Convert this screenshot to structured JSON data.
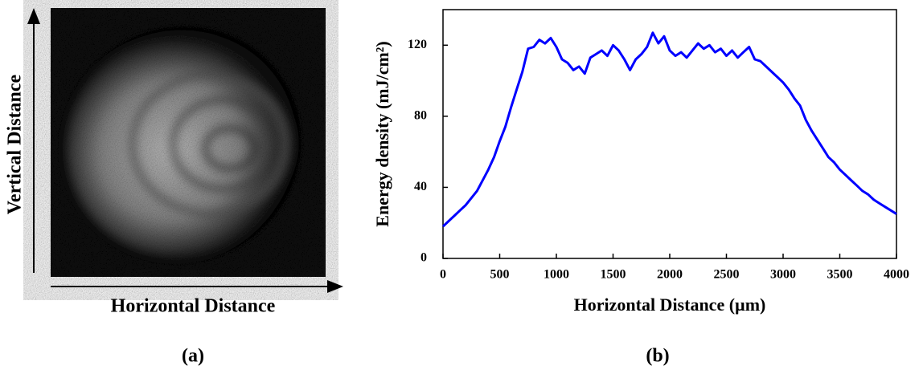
{
  "image_panel": {
    "y_axis_label": "Vertical Distance",
    "x_axis_label": "Horizontal Distance",
    "panel_label": "(a)"
  },
  "chart_data": {
    "type": "line",
    "panel_label": "(b)",
    "xlabel": "Horizontal Distance (µm)",
    "ylabel": "Energy density (mJ/cm²)",
    "x": [
      0,
      50,
      100,
      150,
      200,
      250,
      300,
      350,
      400,
      450,
      500,
      550,
      600,
      650,
      700,
      750,
      800,
      850,
      900,
      950,
      1000,
      1050,
      1100,
      1150,
      1200,
      1250,
      1300,
      1350,
      1400,
      1450,
      1500,
      1550,
      1600,
      1650,
      1700,
      1750,
      1800,
      1850,
      1900,
      1950,
      2000,
      2050,
      2100,
      2150,
      2200,
      2250,
      2300,
      2350,
      2400,
      2450,
      2500,
      2550,
      2600,
      2650,
      2700,
      2750,
      2800,
      2850,
      2900,
      2950,
      3000,
      3050,
      3100,
      3150,
      3200,
      3250,
      3300,
      3350,
      3400,
      3450,
      3500,
      3550,
      3600,
      3650,
      3700,
      3750,
      3800,
      3850,
      3900,
      3950,
      4000
    ],
    "series": [
      {
        "color": "#0000ff",
        "values": [
          18,
          21,
          24,
          27,
          30,
          34,
          38,
          44,
          50,
          57,
          66,
          74,
          85,
          95,
          105,
          118,
          119,
          123,
          121,
          124,
          119,
          112,
          110,
          106,
          108,
          104,
          113,
          115,
          117,
          114,
          120,
          117,
          112,
          106,
          112,
          115,
          119,
          127,
          121,
          125,
          117,
          114,
          116,
          113,
          117,
          121,
          118,
          120,
          116,
          118,
          114,
          117,
          113,
          116,
          119,
          112,
          111,
          108,
          105,
          102,
          99,
          95,
          90,
          86,
          78,
          72,
          67,
          62,
          57,
          54,
          50,
          47,
          44,
          41,
          38,
          36,
          33,
          31,
          29,
          27,
          25
        ]
      }
    ],
    "xlim": [
      0,
      4000
    ],
    "ylim": [
      0,
      140
    ],
    "xticks": [
      0,
      500,
      1000,
      1500,
      2000,
      2500,
      3000,
      3500,
      4000
    ],
    "yticks": [
      0,
      40,
      80,
      120
    ]
  }
}
